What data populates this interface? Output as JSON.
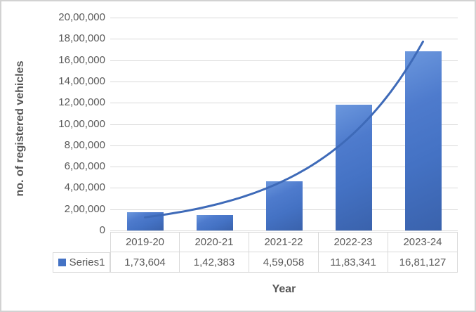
{
  "chart_data": {
    "type": "bar",
    "title": "",
    "categories": [
      "2019-20",
      "2020-21",
      "2021-22",
      "2022-23",
      "2023-24"
    ],
    "series": [
      {
        "name": "Series1",
        "values": [
          173604,
          142383,
          459058,
          1183341,
          1681127
        ],
        "value_labels": [
          "1,73,604",
          "1,42,383",
          "4,59,058",
          "11,83,341",
          "16,81,127"
        ]
      }
    ],
    "trendline": {
      "type": "exponential",
      "applies_to": "Series1"
    },
    "ylabel": "no. of registered vehicles",
    "xlabel": "Year",
    "ylim": [
      0,
      2000000
    ],
    "ytick_step": 200000,
    "ytick_labels_top_down": [
      "20,00,000",
      "18,00,000",
      "16,00,000",
      "14,00,000",
      "12,00,000",
      "10,00,000",
      "8,00,000",
      "6,00,000",
      "4,00,000",
      "2,00,000",
      "0"
    ],
    "grid": true,
    "legend_position": "data-table-left",
    "colors": {
      "bar": "#4472c4",
      "trendline": "#3e6ab8",
      "gridline": "#d9d9d9",
      "tick_text": "#595959",
      "title_text": "#555555"
    }
  }
}
